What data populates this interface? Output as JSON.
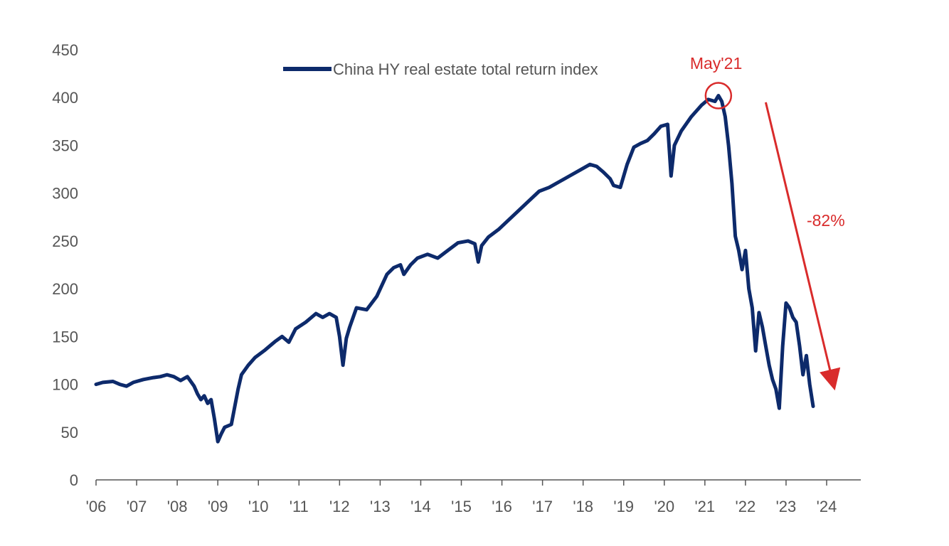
{
  "chart_data": {
    "type": "line",
    "title": "",
    "xlabel": "",
    "ylabel": "",
    "x_range": [
      "2006-01",
      "2024-06"
    ],
    "ylim": [
      0,
      450
    ],
    "y_ticks": [
      0,
      50,
      100,
      150,
      200,
      250,
      300,
      350,
      400,
      450
    ],
    "x_ticks": [
      {
        "label": "'06",
        "x": "2006-01"
      },
      {
        "label": "'07",
        "x": "2007-01"
      },
      {
        "label": "'08",
        "x": "2008-01"
      },
      {
        "label": "'09",
        "x": "2009-01"
      },
      {
        "label": "'10",
        "x": "2010-01"
      },
      {
        "label": "'11",
        "x": "2011-01"
      },
      {
        "label": "'12",
        "x": "2012-01"
      },
      {
        "label": "'13",
        "x": "2013-01"
      },
      {
        "label": "'14",
        "x": "2014-01"
      },
      {
        "label": "'15",
        "x": "2015-01"
      },
      {
        "label": "'16",
        "x": "2016-01"
      },
      {
        "label": "'17",
        "x": "2017-01"
      },
      {
        "label": "'18",
        "x": "2018-01"
      },
      {
        "label": "'19",
        "x": "2019-01"
      },
      {
        "label": "'20",
        "x": "2020-01"
      },
      {
        "label": "'21",
        "x": "2021-01"
      },
      {
        "label": "'22",
        "x": "2022-01"
      },
      {
        "label": "'23",
        "x": "2023-01"
      },
      {
        "label": "'24",
        "x": "2024-01"
      }
    ],
    "grid": false,
    "legend": "top-center",
    "series": [
      {
        "name": "China HY real estate total return index",
        "color": "#0d2a6b",
        "points": [
          {
            "x": "2006-01",
            "y": 100
          },
          {
            "x": "2006-03",
            "y": 102
          },
          {
            "x": "2006-06",
            "y": 103
          },
          {
            "x": "2006-08",
            "y": 100
          },
          {
            "x": "2006-10",
            "y": 98
          },
          {
            "x": "2006-12",
            "y": 102
          },
          {
            "x": "2007-03",
            "y": 105
          },
          {
            "x": "2007-06",
            "y": 107
          },
          {
            "x": "2007-08",
            "y": 108
          },
          {
            "x": "2007-10",
            "y": 110
          },
          {
            "x": "2007-12",
            "y": 108
          },
          {
            "x": "2008-02",
            "y": 104
          },
          {
            "x": "2008-04",
            "y": 108
          },
          {
            "x": "2008-06",
            "y": 98
          },
          {
            "x": "2008-07",
            "y": 90
          },
          {
            "x": "2008-08",
            "y": 84
          },
          {
            "x": "2008-09",
            "y": 88
          },
          {
            "x": "2008-10",
            "y": 80
          },
          {
            "x": "2008-11",
            "y": 84
          },
          {
            "x": "2008-12",
            "y": 64
          },
          {
            "x": "2009-01",
            "y": 40
          },
          {
            "x": "2009-02",
            "y": 48
          },
          {
            "x": "2009-03",
            "y": 55
          },
          {
            "x": "2009-05",
            "y": 58
          },
          {
            "x": "2009-07",
            "y": 95
          },
          {
            "x": "2009-08",
            "y": 110
          },
          {
            "x": "2009-10",
            "y": 120
          },
          {
            "x": "2009-12",
            "y": 128
          },
          {
            "x": "2010-03",
            "y": 136
          },
          {
            "x": "2010-06",
            "y": 145
          },
          {
            "x": "2010-08",
            "y": 150
          },
          {
            "x": "2010-10",
            "y": 144
          },
          {
            "x": "2010-12",
            "y": 158
          },
          {
            "x": "2011-03",
            "y": 165
          },
          {
            "x": "2011-06",
            "y": 174
          },
          {
            "x": "2011-08",
            "y": 170
          },
          {
            "x": "2011-10",
            "y": 174
          },
          {
            "x": "2011-12",
            "y": 170
          },
          {
            "x": "2012-01",
            "y": 150
          },
          {
            "x": "2012-02",
            "y": 120
          },
          {
            "x": "2012-03",
            "y": 148
          },
          {
            "x": "2012-04",
            "y": 160
          },
          {
            "x": "2012-06",
            "y": 180
          },
          {
            "x": "2012-09",
            "y": 178
          },
          {
            "x": "2012-12",
            "y": 192
          },
          {
            "x": "2013-03",
            "y": 215
          },
          {
            "x": "2013-05",
            "y": 222
          },
          {
            "x": "2013-07",
            "y": 225
          },
          {
            "x": "2013-08",
            "y": 215
          },
          {
            "x": "2013-10",
            "y": 225
          },
          {
            "x": "2013-12",
            "y": 232
          },
          {
            "x": "2014-03",
            "y": 236
          },
          {
            "x": "2014-06",
            "y": 232
          },
          {
            "x": "2014-09",
            "y": 240
          },
          {
            "x": "2014-12",
            "y": 248
          },
          {
            "x": "2015-03",
            "y": 250
          },
          {
            "x": "2015-05",
            "y": 247
          },
          {
            "x": "2015-06",
            "y": 228
          },
          {
            "x": "2015-07",
            "y": 245
          },
          {
            "x": "2015-09",
            "y": 254
          },
          {
            "x": "2015-12",
            "y": 262
          },
          {
            "x": "2016-03",
            "y": 272
          },
          {
            "x": "2016-06",
            "y": 282
          },
          {
            "x": "2016-09",
            "y": 292
          },
          {
            "x": "2016-12",
            "y": 302
          },
          {
            "x": "2017-03",
            "y": 306
          },
          {
            "x": "2017-06",
            "y": 312
          },
          {
            "x": "2017-09",
            "y": 318
          },
          {
            "x": "2017-12",
            "y": 324
          },
          {
            "x": "2018-03",
            "y": 330
          },
          {
            "x": "2018-05",
            "y": 328
          },
          {
            "x": "2018-07",
            "y": 322
          },
          {
            "x": "2018-09",
            "y": 315
          },
          {
            "x": "2018-10",
            "y": 308
          },
          {
            "x": "2018-12",
            "y": 306
          },
          {
            "x": "2019-02",
            "y": 330
          },
          {
            "x": "2019-04",
            "y": 348
          },
          {
            "x": "2019-06",
            "y": 352
          },
          {
            "x": "2019-08",
            "y": 355
          },
          {
            "x": "2019-10",
            "y": 362
          },
          {
            "x": "2019-12",
            "y": 370
          },
          {
            "x": "2020-02",
            "y": 372
          },
          {
            "x": "2020-03",
            "y": 318
          },
          {
            "x": "2020-04",
            "y": 350
          },
          {
            "x": "2020-06",
            "y": 365
          },
          {
            "x": "2020-09",
            "y": 380
          },
          {
            "x": "2020-12",
            "y": 392
          },
          {
            "x": "2021-02",
            "y": 398
          },
          {
            "x": "2021-04",
            "y": 396
          },
          {
            "x": "2021-05",
            "y": 402
          },
          {
            "x": "2021-06",
            "y": 396
          },
          {
            "x": "2021-07",
            "y": 380
          },
          {
            "x": "2021-08",
            "y": 350
          },
          {
            "x": "2021-09",
            "y": 310
          },
          {
            "x": "2021-10",
            "y": 255
          },
          {
            "x": "2021-11",
            "y": 240
          },
          {
            "x": "2021-12",
            "y": 220
          },
          {
            "x": "2022-01",
            "y": 240
          },
          {
            "x": "2022-02",
            "y": 200
          },
          {
            "x": "2022-03",
            "y": 180
          },
          {
            "x": "2022-04",
            "y": 135
          },
          {
            "x": "2022-05",
            "y": 175
          },
          {
            "x": "2022-06",
            "y": 160
          },
          {
            "x": "2022-07",
            "y": 140
          },
          {
            "x": "2022-08",
            "y": 120
          },
          {
            "x": "2022-09",
            "y": 105
          },
          {
            "x": "2022-10",
            "y": 95
          },
          {
            "x": "2022-11",
            "y": 75
          },
          {
            "x": "2022-12",
            "y": 140
          },
          {
            "x": "2023-01",
            "y": 185
          },
          {
            "x": "2023-02",
            "y": 180
          },
          {
            "x": "2023-03",
            "y": 170
          },
          {
            "x": "2023-04",
            "y": 165
          },
          {
            "x": "2023-05",
            "y": 140
          },
          {
            "x": "2023-06",
            "y": 110
          },
          {
            "x": "2023-07",
            "y": 130
          },
          {
            "x": "2023-08",
            "y": 100
          },
          {
            "x": "2023-09",
            "y": 77
          }
        ]
      }
    ],
    "annotations": [
      {
        "text": "May'21",
        "x": "2021-05",
        "y": 402,
        "type": "circle",
        "color": "#d92b2b"
      },
      {
        "text": "-82%",
        "type": "arrow",
        "color": "#d92b2b",
        "from": {
          "x": "2022-07",
          "y": 395
        },
        "to": {
          "x": "2024-03",
          "y": 100
        }
      }
    ]
  }
}
